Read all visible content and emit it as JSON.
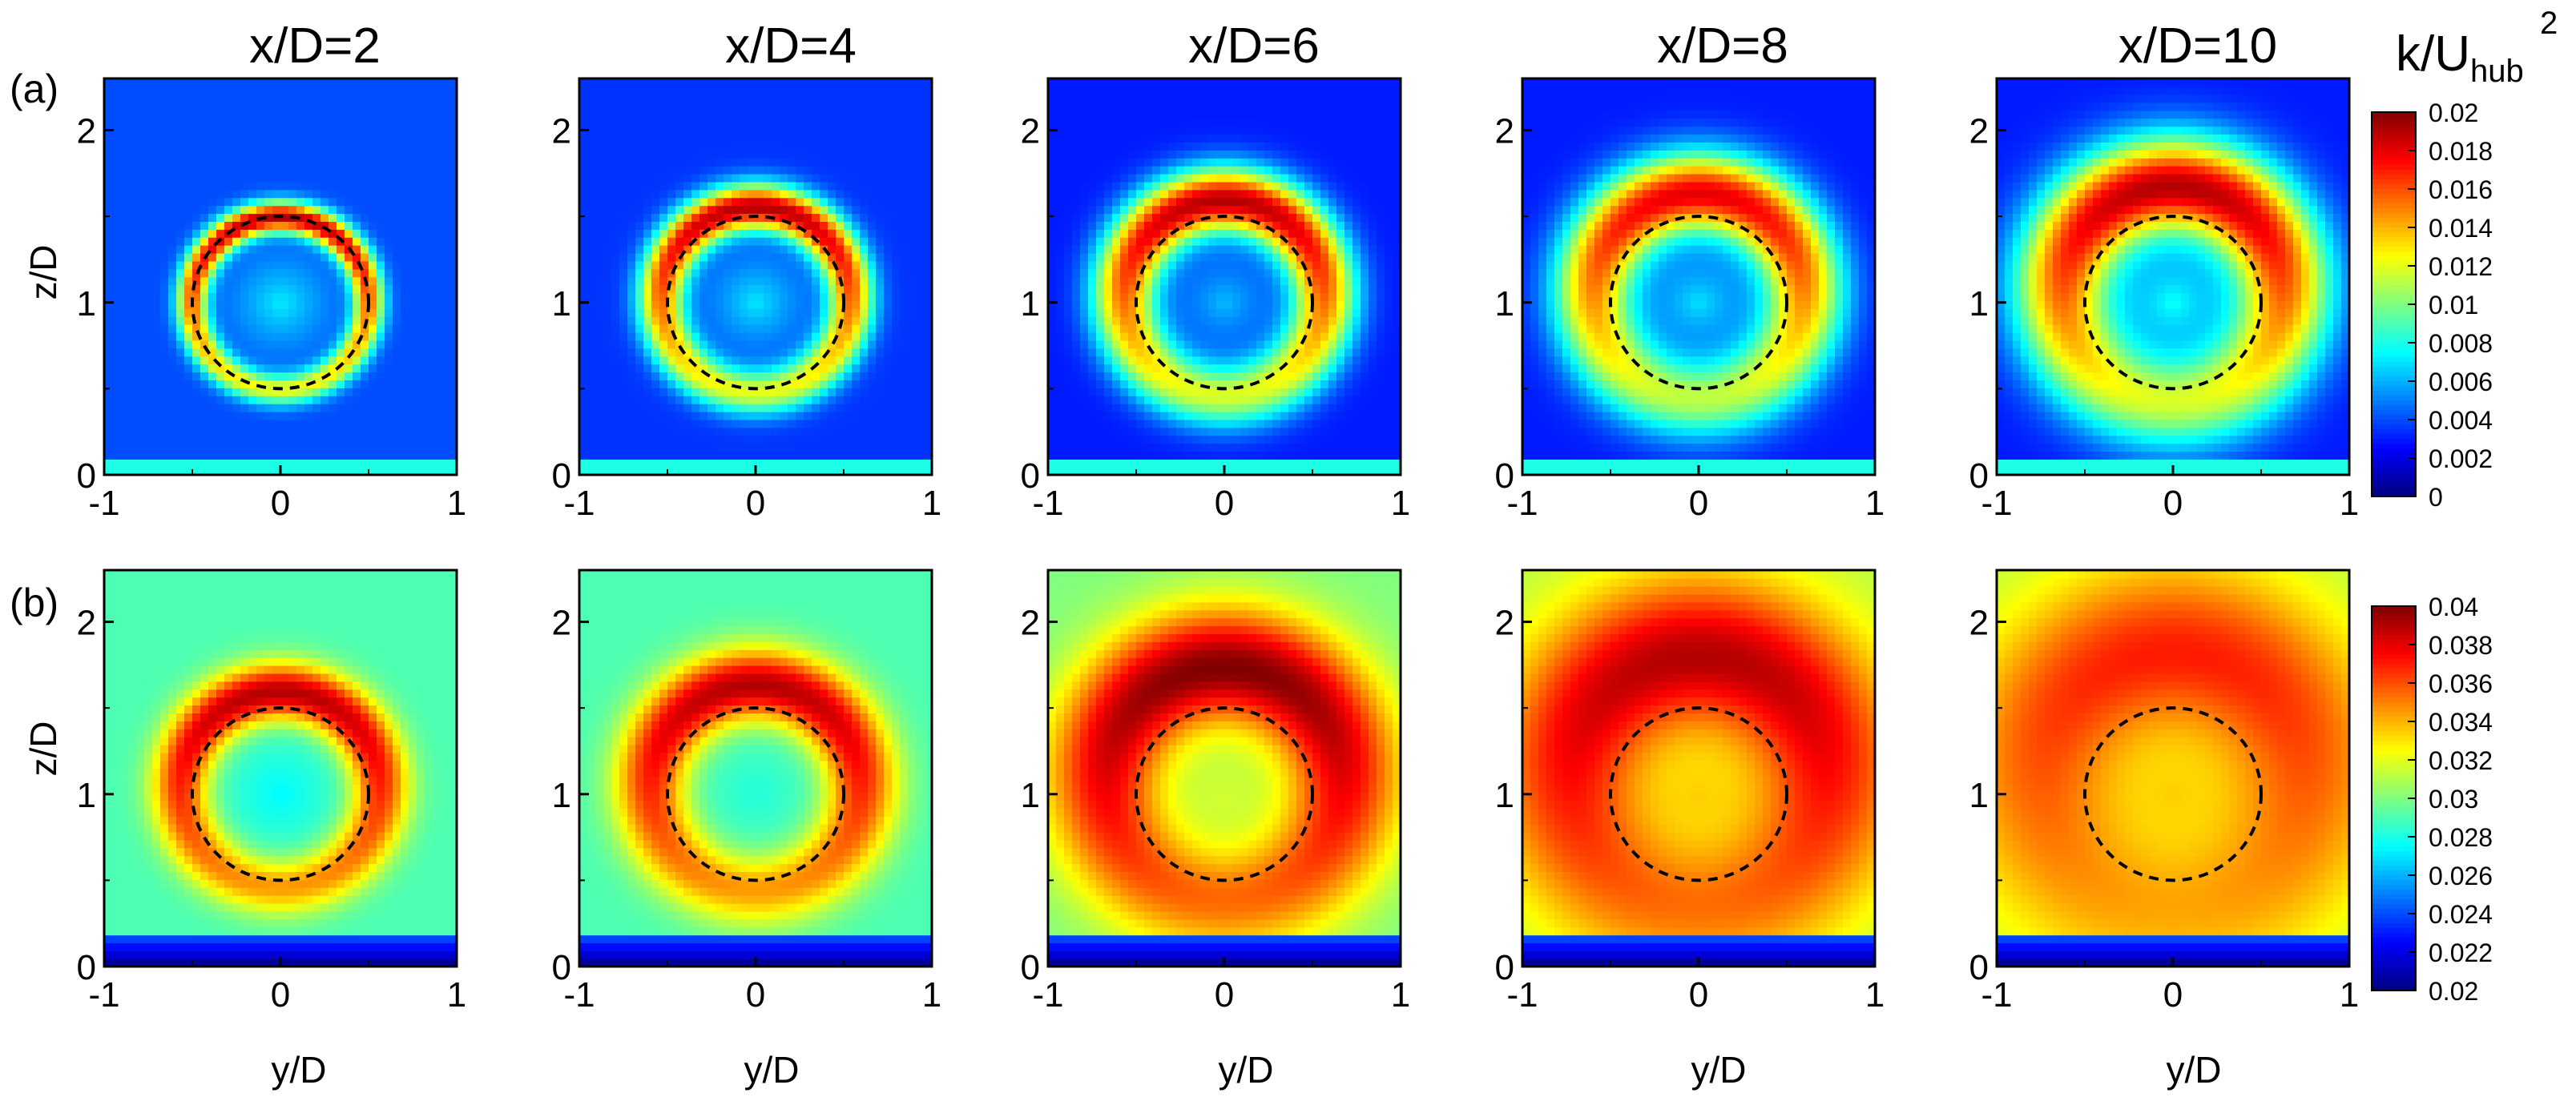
{
  "figure": {
    "column_titles": [
      "x/D=2",
      "x/D=4",
      "x/D=6",
      "x/D=8",
      "x/D=10"
    ],
    "row_labels": [
      "(a)",
      "(b)"
    ],
    "axis_labels": {
      "y": "z/D",
      "x": "y/D"
    },
    "colorbar_title": {
      "main": "k/U",
      "sub": "hub",
      "sup": "2"
    }
  },
  "chart_data": {
    "type": "heatmap",
    "description_units": "normalized turbulent kinetic energy k/Uhub^2",
    "x_label": "y/D",
    "y_label": "z/D",
    "x_range": [
      -1,
      1
    ],
    "y_range": [
      0,
      2.3
    ],
    "x_ticks": [
      "-1",
      "0",
      "1"
    ],
    "y_ticks": [
      "0",
      "1",
      "2"
    ],
    "rotor_circle": {
      "center_y": 0,
      "center_z": 1,
      "radius": 0.5,
      "style": "dashed"
    },
    "rows": [
      {
        "label": "(a)",
        "colorbar_min": 0,
        "colorbar_max": 0.02,
        "colorbar_ticks": [
          "0.02",
          "0.018",
          "0.016",
          "0.014",
          "0.012",
          "0.01",
          "0.008",
          "0.006",
          "0.004",
          "0.002",
          "0"
        ],
        "panels": [
          {
            "title": "x/D=2",
            "bg": 0.004,
            "core": 0.008,
            "ring_peak": 0.019,
            "ring_width": 0.09,
            "spread": 0.0,
            "top_shift": 0.0
          },
          {
            "title": "x/D=4",
            "bg": 0.0035,
            "core": 0.008,
            "ring_peak": 0.019,
            "ring_width": 0.13,
            "spread": 0.05,
            "top_shift": 0.1
          },
          {
            "title": "x/D=6",
            "bg": 0.003,
            "core": 0.007,
            "ring_peak": 0.019,
            "ring_width": 0.18,
            "spread": 0.1,
            "top_shift": 0.15
          },
          {
            "title": "x/D=8",
            "bg": 0.003,
            "core": 0.008,
            "ring_peak": 0.018,
            "ring_width": 0.22,
            "spread": 0.15,
            "top_shift": 0.2
          },
          {
            "title": "x/D=10",
            "bg": 0.003,
            "core": 0.009,
            "ring_peak": 0.019,
            "ring_width": 0.26,
            "spread": 0.2,
            "top_shift": 0.25
          }
        ]
      },
      {
        "label": "(b)",
        "colorbar_min": 0.02,
        "colorbar_max": 0.04,
        "colorbar_ticks": [
          "0.04",
          "0.038",
          "0.036",
          "0.034",
          "0.032",
          "0.03",
          "0.028",
          "0.026",
          "0.024",
          "0.022",
          "0.02"
        ],
        "panels": [
          {
            "title": "x/D=2",
            "bg": 0.029,
            "core": 0.027,
            "ring_peak": 0.039,
            "ring_width": 0.16,
            "spread": 0.1,
            "top_shift": 0.15
          },
          {
            "title": "x/D=4",
            "bg": 0.029,
            "core": 0.028,
            "ring_peak": 0.039,
            "ring_width": 0.2,
            "spread": 0.15,
            "top_shift": 0.2
          },
          {
            "title": "x/D=6",
            "bg": 0.03,
            "core": 0.032,
            "ring_peak": 0.04,
            "ring_width": 0.3,
            "spread": 0.3,
            "top_shift": 0.3
          },
          {
            "title": "x/D=8",
            "bg": 0.031,
            "core": 0.034,
            "ring_peak": 0.039,
            "ring_width": 0.38,
            "spread": 0.4,
            "top_shift": 0.35
          },
          {
            "title": "x/D=10",
            "bg": 0.031,
            "core": 0.034,
            "ring_peak": 0.037,
            "ring_width": 0.42,
            "spread": 0.45,
            "top_shift": 0.35
          }
        ]
      }
    ]
  }
}
